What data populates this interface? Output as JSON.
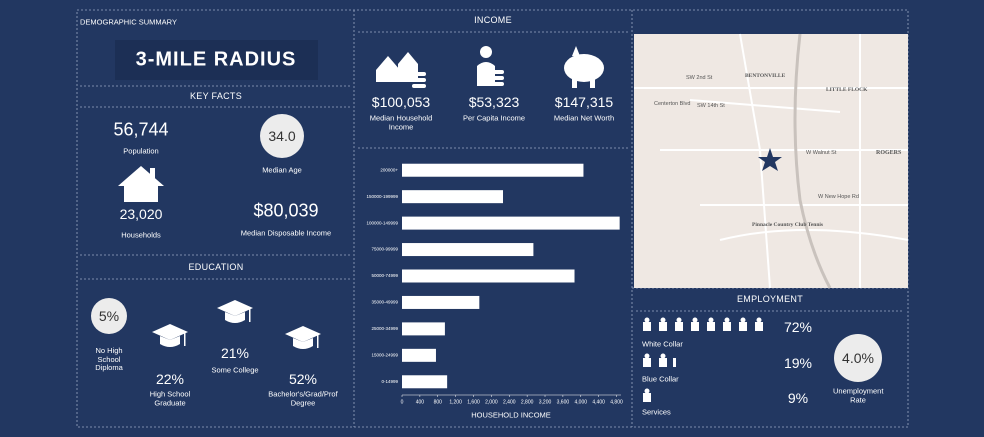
{
  "demographic": {
    "header": "DEMOGRAPHIC SUMMARY",
    "title": "3-MILE RADIUS",
    "key_facts": {
      "heading": "KEY FACTS",
      "population": {
        "value": "56,744",
        "label": "Population"
      },
      "median_age": {
        "value": "34.0",
        "label": "Median Age"
      },
      "households": {
        "value": "23,020",
        "label": "Households"
      },
      "median_disposable_income": {
        "value": "$80,039",
        "label": "Median Disposable Income"
      }
    },
    "education": {
      "heading": "EDUCATION",
      "items": [
        {
          "value": "5%",
          "label": "No High School Diploma"
        },
        {
          "value": "22%",
          "label": "High School Graduate"
        },
        {
          "value": "21%",
          "label": "Some College"
        },
        {
          "value": "52%",
          "label": "Bachelor's/Grad/Prof Degree"
        }
      ]
    }
  },
  "income": {
    "heading": "INCOME",
    "items": [
      {
        "value": "$100,053",
        "label": "Median Household Income"
      },
      {
        "value": "$53,323",
        "label": "Per Capita Income"
      },
      {
        "value": "$147,315",
        "label": "Median Net Worth"
      }
    ]
  },
  "chart_data": {
    "type": "bar",
    "orientation": "horizontal",
    "x_label": "HOUSEHOLD INCOME",
    "categories": [
      "200000+",
      "150000-199999",
      "100000-149999",
      "75000-99999",
      "50000-74999",
      "35000-49999",
      "25000-34999",
      "15000-24999",
      "0-14999"
    ],
    "values": [
      4060,
      2260,
      4870,
      2940,
      3860,
      1730,
      960,
      760,
      1010
    ],
    "color": "#ffffff",
    "xlim": [
      0,
      4900
    ],
    "xticks": [
      0,
      400,
      800,
      {
        "value": 1200,
        "label": "1,200"
      },
      {
        "value": 1600,
        "label": "1,600"
      },
      {
        "value": 2000,
        "label": "2,000"
      },
      {
        "value": 2400,
        "label": "2,400"
      },
      {
        "value": 2800,
        "label": "2,800"
      },
      {
        "value": 3200,
        "label": "3,200"
      },
      {
        "value": 3600,
        "label": "3,600"
      },
      {
        "value": 4000,
        "label": "4,000"
      },
      {
        "value": 4400,
        "label": "4,400"
      },
      {
        "value": 4800,
        "label": "4,800"
      }
    ]
  },
  "map": {
    "labels": [
      "BENTONVILLE",
      "LITTLE FLOCK",
      "ROGERS",
      "W Walnut St",
      "W New Hope Rd",
      "Pinnacle Country Club Tennis",
      "Centerton Blvd",
      "SW 14th St",
      "SW 2nd St"
    ]
  },
  "employment": {
    "heading": "EMPLOYMENT",
    "items": [
      {
        "value": "72%",
        "label": "White Collar"
      },
      {
        "value": "19%",
        "label": "Blue Collar"
      },
      {
        "value": "9%",
        "label": "Services"
      }
    ],
    "unemployment": {
      "value": "4.0%",
      "label": "Unemployment Rate"
    }
  }
}
